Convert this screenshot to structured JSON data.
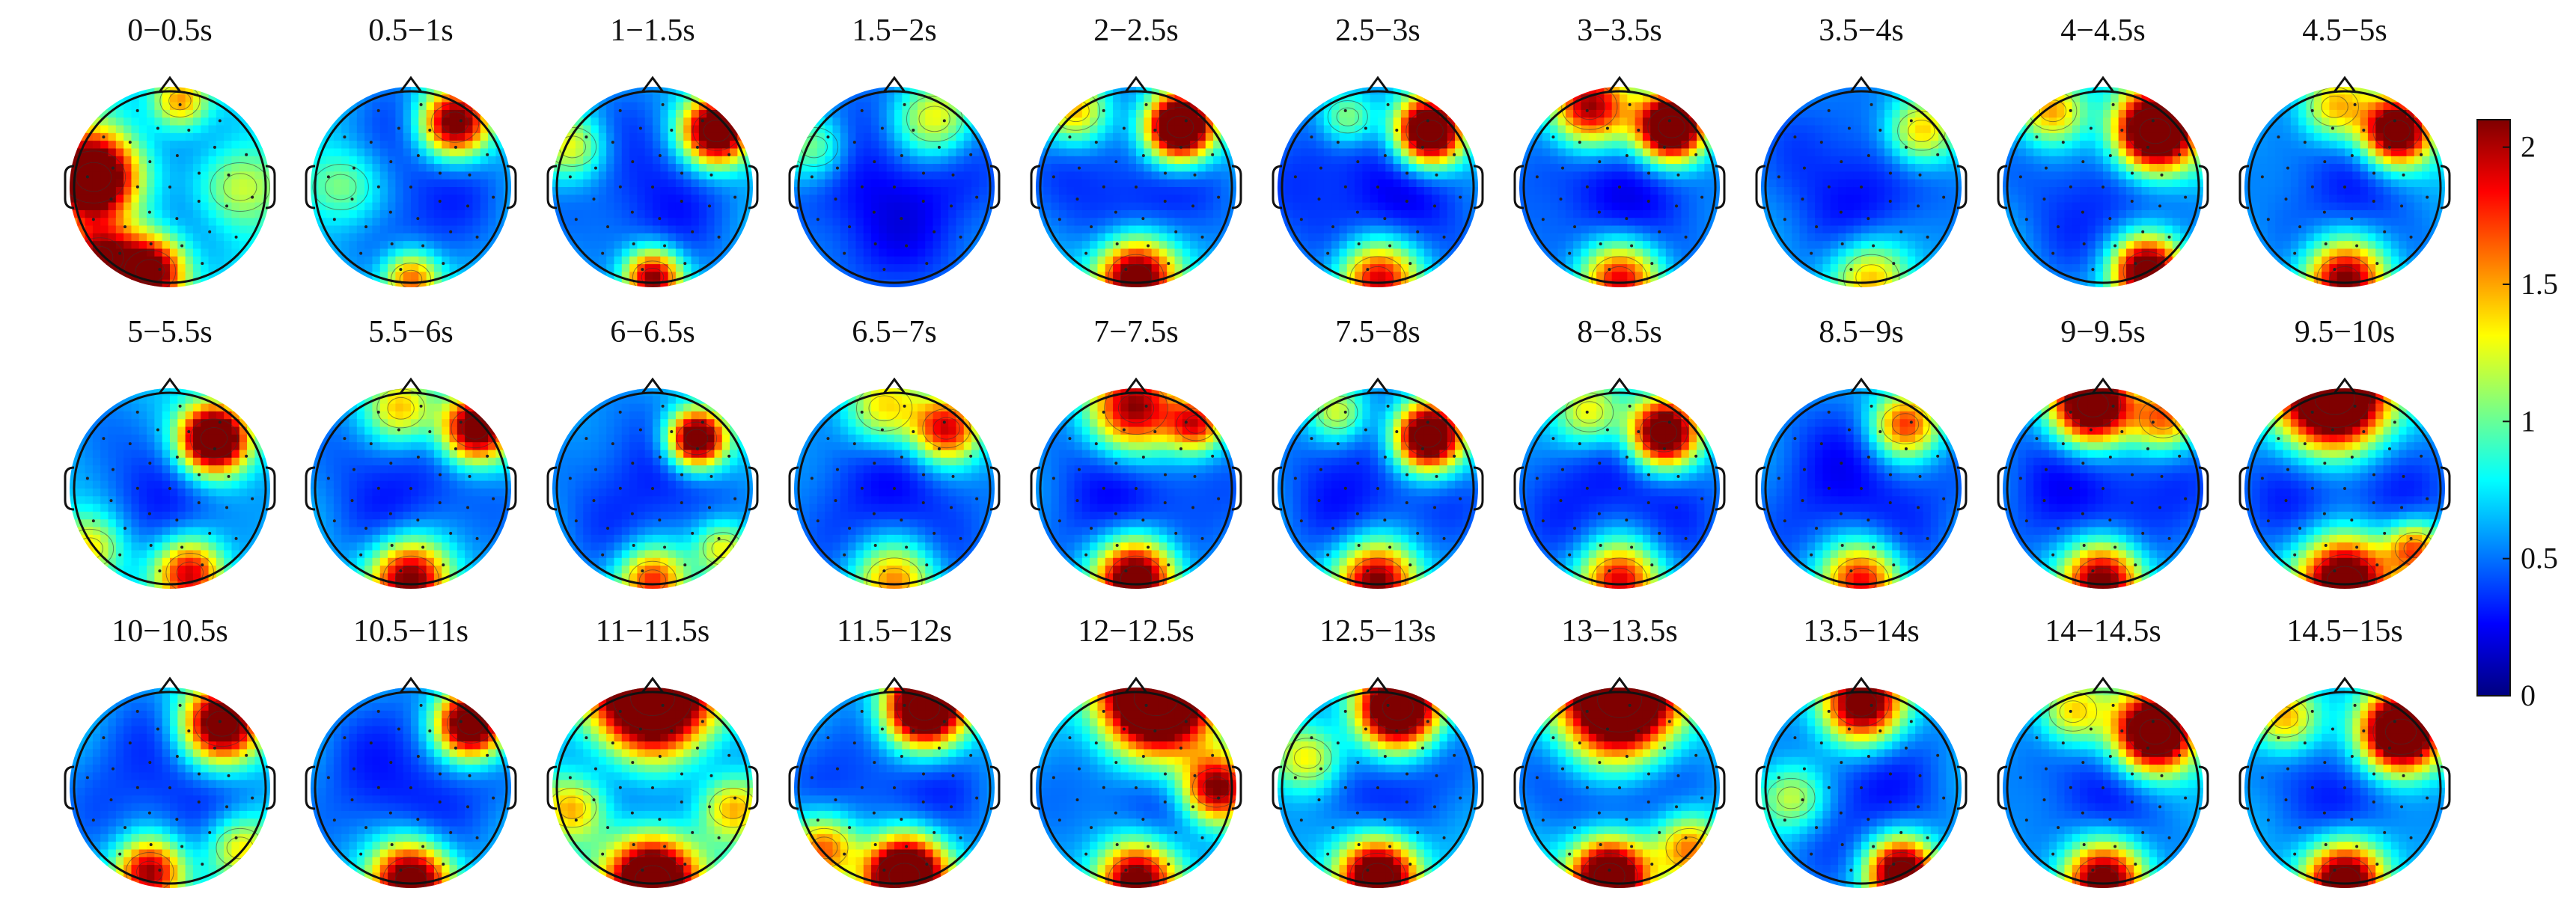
{
  "figure": {
    "panels": [
      {
        "label": "0−0.5s",
        "hot": [
          [
            0.12,
            0.45,
            3.2,
            0.16
          ],
          [
            0.4,
            0.92,
            2.6,
            0.13
          ],
          [
            0.55,
            0.07,
            1.6,
            0.1
          ],
          [
            0.15,
            0.85,
            1.8,
            0.12
          ],
          [
            0.85,
            0.5,
            1.3,
            0.15
          ]
        ],
        "base": 0.72
      },
      {
        "label": "0.5−1s",
        "hot": [
          [
            0.72,
            0.18,
            2.4,
            0.12
          ],
          [
            0.5,
            0.96,
            1.7,
            0.1
          ],
          [
            0.15,
            0.5,
            1.1,
            0.14
          ]
        ],
        "base": 0.62
      },
      {
        "label": "1−1.5s",
        "hot": [
          [
            0.82,
            0.22,
            2.8,
            0.12
          ],
          [
            0.5,
            0.95,
            2.2,
            0.1
          ],
          [
            0.1,
            0.3,
            1.2,
            0.12
          ]
        ],
        "base": 0.6
      },
      {
        "label": "1.5−2s",
        "hot": [
          [
            0.7,
            0.16,
            1.3,
            0.14
          ],
          [
            0.1,
            0.3,
            1.0,
            0.12
          ]
        ],
        "base": 0.42
      },
      {
        "label": "2−2.5s",
        "hot": [
          [
            0.72,
            0.2,
            3.2,
            0.12
          ],
          [
            0.5,
            0.95,
            2.6,
            0.14
          ],
          [
            0.2,
            0.12,
            1.4,
            0.12
          ]
        ],
        "base": 0.55
      },
      {
        "label": "2.5−3s",
        "hot": [
          [
            0.76,
            0.22,
            3.0,
            0.12
          ],
          [
            0.5,
            0.96,
            2.0,
            0.14
          ],
          [
            0.35,
            0.15,
            1.1,
            0.1
          ]
        ],
        "base": 0.45
      },
      {
        "label": "3−3.5s",
        "hot": [
          [
            0.76,
            0.2,
            3.2,
            0.12
          ],
          [
            0.35,
            0.1,
            2.2,
            0.14
          ],
          [
            0.5,
            0.96,
            1.9,
            0.14
          ]
        ],
        "base": 0.48
      },
      {
        "label": "3.5−4s",
        "hot": [
          [
            0.8,
            0.22,
            1.5,
            0.12
          ],
          [
            0.55,
            0.95,
            1.4,
            0.14
          ]
        ],
        "base": 0.55
      },
      {
        "label": "4−4.5s",
        "hot": [
          [
            0.76,
            0.22,
            3.4,
            0.14
          ],
          [
            0.72,
            0.92,
            2.6,
            0.12
          ],
          [
            0.25,
            0.12,
            1.5,
            0.12
          ]
        ],
        "base": 0.62
      },
      {
        "label": "4.5−5s",
        "hot": [
          [
            0.76,
            0.22,
            2.8,
            0.12
          ],
          [
            0.5,
            0.96,
            2.2,
            0.14
          ],
          [
            0.45,
            0.1,
            1.4,
            0.12
          ]
        ],
        "base": 0.65
      },
      {
        "label": "5−5.5s",
        "hot": [
          [
            0.72,
            0.25,
            3.2,
            0.12
          ],
          [
            0.6,
            0.92,
            2.0,
            0.12
          ],
          [
            0.1,
            0.8,
            1.3,
            0.12
          ]
        ],
        "base": 0.68
      },
      {
        "label": "5.5−6s",
        "hot": [
          [
            0.82,
            0.2,
            2.6,
            0.12
          ],
          [
            0.5,
            0.95,
            2.3,
            0.14
          ],
          [
            0.45,
            0.1,
            1.4,
            0.12
          ]
        ],
        "base": 0.6
      },
      {
        "label": "6−6.5s",
        "hot": [
          [
            0.72,
            0.25,
            2.8,
            0.1
          ],
          [
            0.5,
            0.96,
            1.8,
            0.12
          ],
          [
            0.85,
            0.8,
            1.3,
            0.1
          ]
        ],
        "base": 0.62
      },
      {
        "label": "6.5−7s",
        "hot": [
          [
            0.76,
            0.2,
            2.0,
            0.12
          ],
          [
            0.45,
            0.1,
            1.3,
            0.14
          ],
          [
            0.5,
            0.96,
            1.5,
            0.14
          ]
        ],
        "base": 0.55
      },
      {
        "label": "7−7.5s",
        "hot": [
          [
            0.5,
            0.1,
            2.2,
            0.16
          ],
          [
            0.5,
            0.95,
            2.6,
            0.14
          ],
          [
            0.8,
            0.18,
            1.8,
            0.1
          ]
        ],
        "base": 0.52
      },
      {
        "label": "7.5−8s",
        "hot": [
          [
            0.75,
            0.24,
            3.0,
            0.12
          ],
          [
            0.5,
            0.96,
            2.3,
            0.14
          ],
          [
            0.3,
            0.12,
            1.1,
            0.1
          ]
        ],
        "base": 0.55
      },
      {
        "label": "8−8.5s",
        "hot": [
          [
            0.72,
            0.22,
            2.8,
            0.12
          ],
          [
            0.5,
            0.96,
            2.0,
            0.14
          ],
          [
            0.35,
            0.12,
            1.3,
            0.12
          ]
        ],
        "base": 0.52
      },
      {
        "label": "8.5−9s",
        "hot": [
          [
            0.72,
            0.18,
            1.8,
            0.12
          ],
          [
            0.5,
            0.96,
            1.9,
            0.14
          ]
        ],
        "base": 0.52
      },
      {
        "label": "9−9.5s",
        "hot": [
          [
            0.45,
            0.08,
            3.0,
            0.14
          ],
          [
            0.5,
            0.96,
            2.4,
            0.14
          ],
          [
            0.8,
            0.15,
            1.6,
            0.12
          ]
        ],
        "base": 0.48
      },
      {
        "label": "9.5−10s",
        "hot": [
          [
            0.45,
            0.05,
            3.6,
            0.18
          ],
          [
            0.5,
            0.96,
            2.8,
            0.16
          ],
          [
            0.85,
            0.8,
            1.6,
            0.1
          ]
        ],
        "base": 0.5
      },
      {
        "label": "10−10.5s",
        "hot": [
          [
            0.76,
            0.18,
            2.6,
            0.14
          ],
          [
            0.4,
            0.92,
            2.2,
            0.12
          ],
          [
            0.85,
            0.8,
            1.3,
            0.12
          ]
        ],
        "base": 0.62
      },
      {
        "label": "10.5−11s",
        "hot": [
          [
            0.8,
            0.18,
            2.8,
            0.12
          ],
          [
            0.5,
            0.96,
            2.6,
            0.14
          ]
        ],
        "base": 0.58
      },
      {
        "label": "11−11.5s",
        "hot": [
          [
            0.5,
            0.05,
            3.6,
            0.2
          ],
          [
            0.5,
            0.96,
            3.2,
            0.16
          ],
          [
            0.1,
            0.6,
            1.5,
            0.12
          ],
          [
            0.9,
            0.6,
            1.5,
            0.12
          ]
        ],
        "base": 0.62
      },
      {
        "label": "11.5−12s",
        "hot": [
          [
            0.65,
            0.1,
            3.2,
            0.14
          ],
          [
            0.55,
            0.94,
            3.4,
            0.14
          ],
          [
            0.15,
            0.8,
            1.6,
            0.12
          ]
        ],
        "base": 0.6
      },
      {
        "label": "12−12.5s",
        "hot": [
          [
            0.6,
            0.05,
            3.6,
            0.2
          ],
          [
            0.9,
            0.5,
            2.2,
            0.12
          ],
          [
            0.5,
            0.96,
            2.4,
            0.14
          ]
        ],
        "base": 0.65
      },
      {
        "label": "12.5−13s",
        "hot": [
          [
            0.6,
            0.1,
            3.2,
            0.14
          ],
          [
            0.5,
            0.94,
            2.8,
            0.14
          ],
          [
            0.15,
            0.35,
            1.4,
            0.12
          ]
        ],
        "base": 0.62
      },
      {
        "label": "13−13.5s",
        "hot": [
          [
            0.5,
            0.06,
            3.6,
            0.2
          ],
          [
            0.45,
            0.94,
            3.0,
            0.14
          ],
          [
            0.85,
            0.8,
            1.5,
            0.12
          ]
        ],
        "base": 0.6
      },
      {
        "label": "13.5−14s",
        "hot": [
          [
            0.5,
            0.08,
            2.6,
            0.14
          ],
          [
            0.7,
            0.92,
            2.6,
            0.12
          ],
          [
            0.15,
            0.55,
            1.2,
            0.12
          ]
        ],
        "base": 0.6
      },
      {
        "label": "14−14.5s",
        "hot": [
          [
            0.76,
            0.22,
            3.2,
            0.14
          ],
          [
            0.5,
            0.96,
            2.4,
            0.14
          ],
          [
            0.35,
            0.12,
            1.4,
            0.12
          ]
        ],
        "base": 0.62
      },
      {
        "label": "14.5−15s",
        "hot": [
          [
            0.78,
            0.22,
            3.4,
            0.14
          ],
          [
            0.5,
            0.96,
            2.6,
            0.14
          ],
          [
            0.2,
            0.15,
            1.5,
            0.12
          ]
        ],
        "base": 0.62
      }
    ]
  },
  "colorbar": {
    "min": 0,
    "max": 2.1,
    "tick_labels": [
      "2",
      "1.5",
      "1",
      "0.5",
      "0"
    ],
    "tick_values": [
      2,
      1.5,
      1,
      0.5,
      0
    ],
    "colormap": [
      "#00007f",
      "#0000ff",
      "#007fff",
      "#00ffff",
      "#7fff7f",
      "#ffff00",
      "#ff7f00",
      "#ff0000",
      "#7f0000"
    ]
  }
}
